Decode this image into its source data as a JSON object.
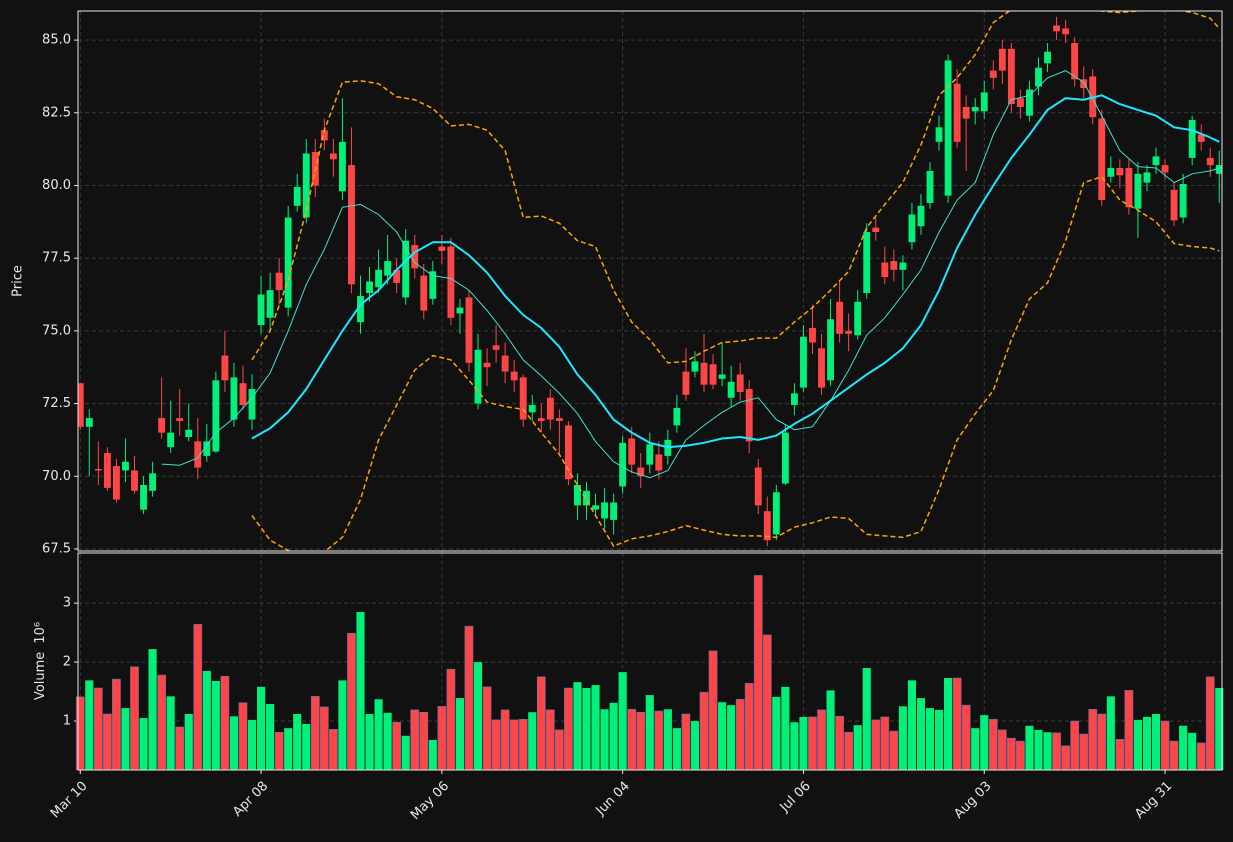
{
  "chart_data": [
    {
      "type": "candlestick",
      "up_color": "#00f07a",
      "down_color": "#ff4646",
      "ylabel": "Price",
      "xlim": [
        -0.25,
        126.3
      ],
      "ylim": [
        67.43,
        86.0
      ],
      "yticks": [
        {
          "value": 67.5,
          "label": "67.5"
        },
        {
          "value": 70,
          "label": "70.0"
        },
        {
          "value": 72.5,
          "label": "72.5"
        },
        {
          "value": 75,
          "label": "75.0"
        },
        {
          "value": 77.5,
          "label": "77.5"
        },
        {
          "value": 80,
          "label": "80.0"
        },
        {
          "value": 82.5,
          "label": "82.5"
        },
        {
          "value": 85,
          "label": "85.0"
        }
      ],
      "xticks": [
        {
          "value": 0,
          "label": "Mar 10"
        },
        {
          "value": 20,
          "label": "Apr 08"
        },
        {
          "value": 40,
          "label": "May 06"
        },
        {
          "value": 60,
          "label": "Jun 04"
        },
        {
          "value": 80,
          "label": "Jul 06"
        },
        {
          "value": 100,
          "label": "Aug 03"
        },
        {
          "value": 120,
          "label": "Aug 31"
        }
      ],
      "grid": true,
      "open": [
        73.2,
        71.7,
        70.25,
        70.8,
        70.35,
        70.2,
        70.2,
        68.85,
        69.5,
        72.0,
        71.0,
        72.0,
        71.35,
        71.2,
        70.7,
        70.85,
        74.15,
        71.95,
        73.2,
        71.95,
        75.2,
        75.45,
        77.0,
        75.8,
        79.3,
        78.9,
        81.15,
        81.9,
        81.1,
        79.8,
        80.7,
        75.3,
        76.3,
        76.5,
        76.9,
        77.1,
        76.15,
        77.95,
        76.9,
        76.1,
        77.9,
        77.9,
        75.6,
        76.15,
        72.5,
        73.9,
        74.5,
        74.15,
        73.6,
        73.4,
        72.2,
        72.0,
        72.7,
        72.0,
        71.75,
        69.0,
        69.0,
        68.85,
        68.55,
        68.5,
        69.65,
        71.3,
        70.3,
        70.4,
        70.75,
        70.7,
        71.75,
        73.6,
        73.6,
        73.9,
        73.85,
        73.35,
        72.7,
        73.5,
        73.0,
        70.3,
        68.8,
        68.0,
        69.75,
        72.45,
        73.05,
        75.1,
        74.4,
        73.3,
        76.0,
        75.0,
        74.85,
        76.3,
        78.55,
        77.35,
        77.4,
        77.1,
        78.05,
        78.6,
        79.4,
        81.5,
        79.65,
        83.5,
        82.7,
        82.55,
        82.55,
        83.95,
        84.7,
        84.7,
        83.0,
        82.4,
        83.4,
        84.2,
        85.5,
        85.4,
        84.9,
        83.65,
        83.75,
        82.3,
        80.3,
        80.6,
        80.6,
        79.2,
        80.1,
        80.7,
        80.7,
        79.85,
        78.9,
        80.95,
        81.75,
        80.95,
        80.4
      ],
      "high": [
        73.2,
        72.3,
        71.2,
        71.0,
        70.6,
        71.3,
        70.7,
        70.0,
        70.5,
        73.4,
        72.6,
        73.0,
        72.5,
        72.0,
        71.8,
        73.6,
        75.0,
        73.9,
        73.8,
        73.5,
        76.9,
        77.0,
        77.5,
        79.3,
        80.4,
        81.6,
        81.6,
        82.3,
        81.6,
        83.0,
        82.0,
        76.9,
        77.2,
        77.8,
        78.3,
        77.5,
        78.5,
        78.3,
        77.3,
        77.4,
        78.3,
        78.2,
        76.1,
        76.4,
        74.9,
        74.4,
        75.2,
        74.6,
        74.0,
        73.5,
        72.8,
        72.5,
        73.0,
        72.3,
        71.9,
        70.1,
        69.8,
        69.4,
        69.6,
        69.4,
        71.4,
        71.7,
        70.8,
        71.5,
        71.2,
        71.6,
        72.8,
        74.4,
        74.3,
        74.9,
        74.2,
        74.6,
        73.8,
        73.9,
        73.3,
        70.6,
        69.3,
        69.7,
        71.8,
        73.2,
        75.2,
        75.9,
        74.9,
        76.1,
        76.7,
        75.6,
        76.4,
        78.7,
        78.9,
        77.9,
        77.8,
        77.6,
        79.4,
        79.7,
        80.8,
        82.4,
        84.5,
        84.0,
        83.1,
        83.0,
        83.6,
        84.3,
        85.0,
        84.9,
        83.3,
        83.6,
        84.4,
        84.9,
        85.8,
        85.7,
        85.1,
        84.1,
        84.0,
        82.6,
        81.0,
        80.9,
        80.9,
        80.8,
        80.7,
        81.3,
        80.9,
        80.1,
        80.4,
        82.4,
        82.1,
        81.3,
        81.2
      ],
      "low": [
        71.6,
        70.0,
        69.7,
        69.5,
        69.1,
        69.8,
        69.4,
        68.7,
        69.3,
        71.3,
        70.8,
        71.4,
        71.2,
        69.9,
        70.5,
        70.8,
        72.9,
        71.7,
        72.3,
        71.6,
        74.9,
        75.0,
        75.9,
        75.5,
        79.1,
        78.7,
        79.6,
        81.2,
        80.3,
        79.5,
        76.3,
        74.9,
        76.0,
        76.3,
        76.6,
        76.3,
        75.9,
        76.8,
        75.4,
        75.9,
        77.3,
        75.2,
        74.9,
        73.6,
        72.3,
        73.1,
        73.9,
        73.2,
        72.9,
        71.7,
        71.9,
        71.5,
        71.6,
        70.8,
        69.7,
        68.5,
        68.5,
        68.6,
        68.2,
        68.0,
        69.4,
        70.1,
        69.6,
        70.1,
        69.9,
        70.4,
        71.5,
        72.6,
        73.4,
        72.9,
        73.0,
        73.1,
        72.4,
        72.6,
        70.8,
        68.7,
        67.6,
        67.8,
        69.7,
        72.1,
        72.9,
        74.2,
        72.8,
        73.1,
        74.6,
        74.3,
        74.7,
        76.1,
        78.1,
        76.6,
        76.7,
        76.4,
        77.8,
        78.3,
        79.2,
        81.2,
        79.4,
        81.3,
        80.5,
        82.1,
        82.3,
        83.3,
        83.5,
        82.5,
        82.3,
        82.2,
        83.1,
        83.9,
        85.0,
        84.9,
        83.4,
        83.0,
        82.1,
        79.3,
        80.1,
        79.9,
        79.0,
        78.2,
        79.8,
        80.4,
        80.2,
        78.6,
        78.7,
        80.7,
        81.2,
        80.3,
        79.4
      ],
      "close": [
        71.7,
        72.0,
        70.2,
        69.6,
        69.2,
        70.5,
        69.5,
        69.7,
        70.1,
        71.5,
        71.5,
        71.9,
        71.6,
        70.3,
        71.2,
        73.3,
        73.3,
        73.4,
        72.45,
        73.0,
        76.25,
        76.4,
        76.4,
        78.9,
        79.95,
        81.1,
        80.0,
        81.55,
        80.9,
        81.5,
        76.6,
        76.2,
        76.7,
        77.1,
        77.4,
        76.65,
        78.1,
        77.15,
        75.7,
        77.05,
        77.75,
        75.45,
        75.8,
        73.9,
        74.35,
        73.75,
        74.35,
        73.6,
        73.3,
        71.95,
        72.45,
        71.9,
        71.95,
        71.9,
        69.9,
        69.7,
        69.5,
        69.0,
        69.1,
        69.1,
        71.15,
        70.4,
        70.0,
        71.1,
        70.2,
        71.25,
        72.35,
        72.8,
        73.95,
        73.15,
        73.15,
        73.5,
        73.25,
        72.9,
        71.2,
        69.0,
        67.8,
        69.45,
        71.5,
        72.85,
        74.8,
        74.6,
        73.05,
        75.4,
        74.9,
        74.9,
        76.0,
        78.4,
        78.4,
        76.85,
        77.1,
        77.35,
        79.0,
        79.3,
        80.5,
        82.0,
        84.3,
        81.5,
        82.3,
        82.7,
        83.2,
        83.7,
        83.95,
        82.8,
        82.7,
        83.3,
        84.05,
        84.6,
        85.3,
        85.2,
        83.65,
        83.35,
        82.35,
        79.5,
        80.6,
        80.35,
        79.25,
        80.4,
        80.45,
        81.0,
        80.45,
        78.8,
        80.05,
        82.25,
        81.5,
        80.7,
        80.7
      ],
      "series": [
        {
          "color": "#3fe0d0",
          "width": 1,
          "dash": "none",
          "x": [
            9,
            11,
            13,
            15,
            17,
            19,
            21,
            23,
            25,
            27,
            29,
            31,
            33,
            35,
            37,
            39,
            41,
            43,
            45,
            47,
            49,
            51,
            53,
            55,
            57,
            59,
            61,
            63,
            65,
            67,
            69,
            71,
            73,
            75,
            77,
            79,
            81,
            83,
            85,
            87,
            89,
            91,
            93,
            95,
            97,
            99,
            101,
            103,
            105,
            107,
            109,
            111,
            113,
            115,
            117,
            119,
            121,
            123,
            125,
            126
          ],
          "values": [
            70.42,
            70.38,
            70.63,
            71.5,
            72.0,
            72.7,
            73.55,
            75.0,
            76.6,
            77.8,
            79.25,
            79.35,
            79.0,
            78.4,
            77.35,
            76.9,
            76.8,
            76.4,
            75.7,
            74.9,
            74.0,
            73.45,
            72.85,
            72.15,
            71.2,
            70.5,
            70.15,
            69.95,
            70.2,
            71.25,
            71.75,
            72.2,
            72.55,
            72.7,
            71.95,
            71.6,
            71.7,
            72.6,
            73.65,
            74.85,
            75.45,
            76.25,
            77.1,
            78.4,
            79.5,
            80.1,
            81.75,
            82.95,
            83.1,
            83.7,
            83.95,
            83.55,
            82.4,
            81.2,
            80.65,
            80.6,
            80.1,
            80.4,
            80.5,
            80.6
          ]
        },
        {
          "color": "#1ee8ff",
          "width": 2,
          "dash": "none",
          "x": [
            19,
            21,
            23,
            25,
            27,
            29,
            31,
            33,
            35,
            37,
            39,
            41,
            43,
            45,
            47,
            49,
            51,
            53,
            55,
            57,
            59,
            61,
            63,
            65,
            67,
            69,
            71,
            73,
            75,
            77,
            79,
            81,
            83,
            85,
            87,
            89,
            91,
            93,
            95,
            97,
            99,
            101,
            103,
            105,
            107,
            109,
            111,
            113,
            115,
            117,
            119,
            121,
            123,
            125,
            126
          ],
          "values": [
            71.3,
            71.65,
            72.2,
            73.0,
            74.0,
            75.0,
            75.9,
            76.4,
            77.1,
            77.7,
            78.05,
            78.05,
            77.6,
            77.0,
            76.2,
            75.55,
            75.1,
            74.45,
            73.5,
            72.8,
            71.95,
            71.5,
            71.15,
            71.0,
            71.05,
            71.15,
            71.3,
            71.35,
            71.25,
            71.4,
            71.8,
            72.15,
            72.6,
            73.05,
            73.5,
            73.9,
            74.4,
            75.2,
            76.4,
            77.85,
            79.0,
            80.0,
            80.95,
            81.75,
            82.6,
            83.0,
            82.95,
            83.1,
            82.8,
            82.6,
            82.4,
            82.0,
            81.9,
            81.65,
            81.5
          ]
        },
        {
          "color": "#ffa500",
          "width": 1.5,
          "dash": "5 3",
          "x": [
            19,
            21,
            23,
            25,
            27,
            29,
            31,
            33,
            35,
            37,
            39,
            41,
            43,
            45,
            47,
            49,
            51,
            53,
            55,
            57,
            59,
            61,
            63,
            65,
            67,
            69,
            71,
            73,
            75,
            77,
            79,
            81,
            83,
            85,
            87,
            89,
            91,
            93,
            95,
            97,
            99,
            101,
            103,
            105,
            107,
            109,
            111,
            113,
            115,
            117,
            119,
            121,
            123,
            125,
            126
          ],
          "values": [
            74.0,
            75.0,
            76.75,
            79.15,
            81.9,
            83.55,
            83.6,
            83.5,
            83.05,
            82.95,
            82.65,
            82.05,
            82.1,
            81.9,
            81.2,
            78.9,
            78.95,
            78.7,
            78.1,
            77.9,
            76.4,
            75.3,
            74.7,
            73.9,
            73.95,
            74.3,
            74.6,
            74.65,
            74.75,
            74.75,
            75.3,
            75.8,
            76.4,
            77.05,
            78.55,
            79.35,
            80.1,
            81.4,
            83.1,
            83.7,
            84.5,
            85.6,
            86.05,
            86.1,
            86.15,
            86.2,
            86.15,
            86.0,
            85.95,
            86.0,
            86.2,
            86.05,
            85.95,
            85.75,
            85.4
          ]
        },
        {
          "color": "#ffa500",
          "width": 1.5,
          "dash": "5 3",
          "x": [
            19,
            21,
            23,
            25,
            27,
            29,
            31,
            33,
            35,
            37,
            39,
            41,
            43,
            45,
            47,
            49,
            51,
            53,
            55,
            57,
            59,
            61,
            63,
            65,
            67,
            69,
            71,
            73,
            75,
            77,
            79,
            81,
            83,
            85,
            87,
            89,
            91,
            93,
            95,
            97,
            99,
            101,
            103,
            105,
            107,
            109,
            111,
            113,
            115,
            117,
            119,
            121,
            123,
            125,
            126
          ],
          "values": [
            68.65,
            67.8,
            67.45,
            67.1,
            67.4,
            67.9,
            69.2,
            71.25,
            72.45,
            73.65,
            74.15,
            74.0,
            73.3,
            72.55,
            72.4,
            72.3,
            71.5,
            70.75,
            69.7,
            68.65,
            67.6,
            67.85,
            67.95,
            68.1,
            68.3,
            68.15,
            68.0,
            67.95,
            67.95,
            67.9,
            68.25,
            68.4,
            68.6,
            68.55,
            68.0,
            67.95,
            67.9,
            68.1,
            69.55,
            71.25,
            72.15,
            72.95,
            74.7,
            76.1,
            76.65,
            78.1,
            80.1,
            80.3,
            79.5,
            79.15,
            78.75,
            78.0,
            77.9,
            77.85,
            77.75
          ]
        }
      ]
    },
    {
      "type": "bar",
      "ylabel": "Volume",
      "offset_label": "10⁶",
      "ylim": [
        0.17,
        3.85
      ],
      "yticks": [
        1,
        2,
        3
      ],
      "grid": true,
      "values": [
        1.41,
        1.69,
        1.56,
        1.12,
        1.71,
        1.22,
        1.92,
        1.05,
        2.22,
        1.78,
        1.42,
        0.9,
        1.12,
        2.64,
        1.85,
        1.68,
        1.76,
        1.08,
        1.31,
        1.02,
        1.58,
        1.29,
        0.81,
        0.88,
        1.12,
        0.95,
        1.42,
        1.24,
        0.86,
        1.69,
        2.49,
        2.85,
        1.12,
        1.37,
        1.14,
        0.98,
        0.75,
        1.19,
        1.15,
        0.68,
        1.25,
        1.88,
        1.39,
        2.61,
        2.0,
        1.58,
        1.02,
        1.19,
        1.02,
        1.03,
        1.15,
        1.75,
        1.19,
        0.85,
        1.56,
        1.66,
        1.56,
        1.61,
        1.2,
        1.31,
        1.83,
        1.2,
        1.15,
        1.44,
        1.17,
        1.2,
        0.88,
        1.12,
        1.0,
        1.49,
        2.19,
        1.32,
        1.27,
        1.37,
        1.64,
        3.47,
        2.46,
        1.41,
        1.58,
        0.98,
        1.07,
        1.07,
        1.19,
        1.52,
        1.08,
        0.81,
        0.93,
        1.9,
        1.02,
        1.07,
        0.83,
        1.25,
        1.69,
        1.39,
        1.22,
        1.19,
        1.73,
        1.73,
        1.27,
        0.88,
        1.1,
        1.03,
        0.85,
        0.71,
        0.66,
        0.92,
        0.85,
        0.81,
        0.8,
        0.58,
        1.0,
        0.78,
        1.2,
        1.12,
        1.42,
        0.69,
        1.52,
        1.02,
        1.07,
        1.12,
        1.0,
        0.66,
        0.92,
        0.8,
        0.63,
        1.75,
        1.56
      ]
    }
  ]
}
